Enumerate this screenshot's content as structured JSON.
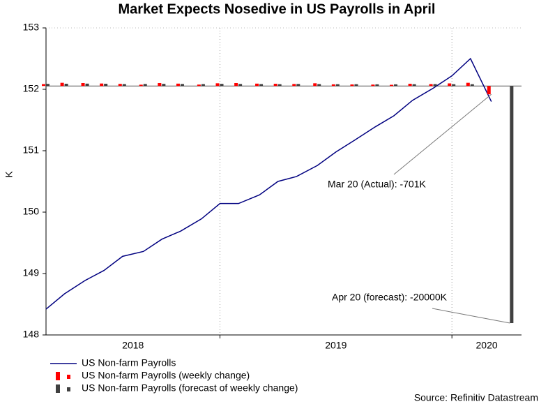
{
  "chart_data": {
    "type": "line",
    "title": "Market Expects Nosedive in US Payrolls in April",
    "y_label": "K",
    "source": "Source: Refinitiv Datastream",
    "xlim": [
      2018.25,
      2020.3
    ],
    "xticks": [
      2018,
      2019,
      2020
    ],
    "ylim": [
      148,
      153
    ],
    "yticks": [
      148,
      149,
      150,
      151,
      152,
      153
    ],
    "y2lim": [
      -21000,
      4900
    ],
    "grid": true,
    "legend": "bottom-left",
    "series": [
      {
        "name": "US Non-farm Payrolls",
        "type": "line",
        "color": "#000080",
        "x": [
          2018.25,
          2018.33,
          2018.42,
          2018.5,
          2018.58,
          2018.67,
          2018.75,
          2018.83,
          2018.92,
          2019,
          2019.08,
          2019.17,
          2019.25,
          2019.33,
          2019.42,
          2019.5,
          2019.58,
          2019.67,
          2019.75,
          2019.83,
          2019.92,
          2020,
          2020.08,
          2020.17
        ],
        "values": [
          148.42,
          148.67,
          148.89,
          149.05,
          149.28,
          149.36,
          149.56,
          149.69,
          149.89,
          150.14,
          150.14,
          150.28,
          150.5,
          150.58,
          150.76,
          150.98,
          151.17,
          151.39,
          151.57,
          151.82,
          152.02,
          152.22,
          152.5,
          151.8
        ]
      },
      {
        "name": "US Non-farm Payrolls (weekly change)",
        "type": "bar",
        "axis": "y2",
        "color": "#ff0000",
        "x": [
          2018.25,
          2018.33,
          2018.42,
          2018.5,
          2018.58,
          2018.67,
          2018.75,
          2018.83,
          2018.92,
          2019,
          2019.08,
          2019.17,
          2019.25,
          2019.33,
          2019.42,
          2019.5,
          2019.58,
          2019.67,
          2019.75,
          2019.83,
          2019.92,
          2020,
          2020.08,
          2020.17
        ],
        "values": [
          160,
          270,
          250,
          210,
          180,
          110,
          250,
          200,
          120,
          230,
          250,
          200,
          190,
          170,
          230,
          140,
          130,
          120,
          100,
          190,
          160,
          220,
          270,
          -701
        ]
      },
      {
        "name": "US Non-farm Payrolls (forecast of weekly change)",
        "type": "bar",
        "axis": "y2",
        "color": "#404040",
        "x": [
          2018.25,
          2018.33,
          2018.42,
          2018.5,
          2018.58,
          2018.67,
          2018.75,
          2018.83,
          2018.92,
          2019,
          2019.08,
          2019.17,
          2019.25,
          2019.33,
          2019.42,
          2019.5,
          2019.58,
          2019.67,
          2019.75,
          2019.83,
          2019.92,
          2020,
          2020.08,
          2020.25
        ],
        "values": [
          180,
          190,
          200,
          190,
          160,
          170,
          180,
          170,
          160,
          180,
          170,
          160,
          150,
          170,
          160,
          150,
          150,
          140,
          140,
          150,
          160,
          150,
          150,
          -20000
        ]
      }
    ],
    "annotations": [
      {
        "text": "Mar 20 (Actual): -701K",
        "series": 1,
        "index": 23
      },
      {
        "text": "Apr 20 (forecast): -20000K",
        "series": 2,
        "index": 23
      }
    ]
  }
}
